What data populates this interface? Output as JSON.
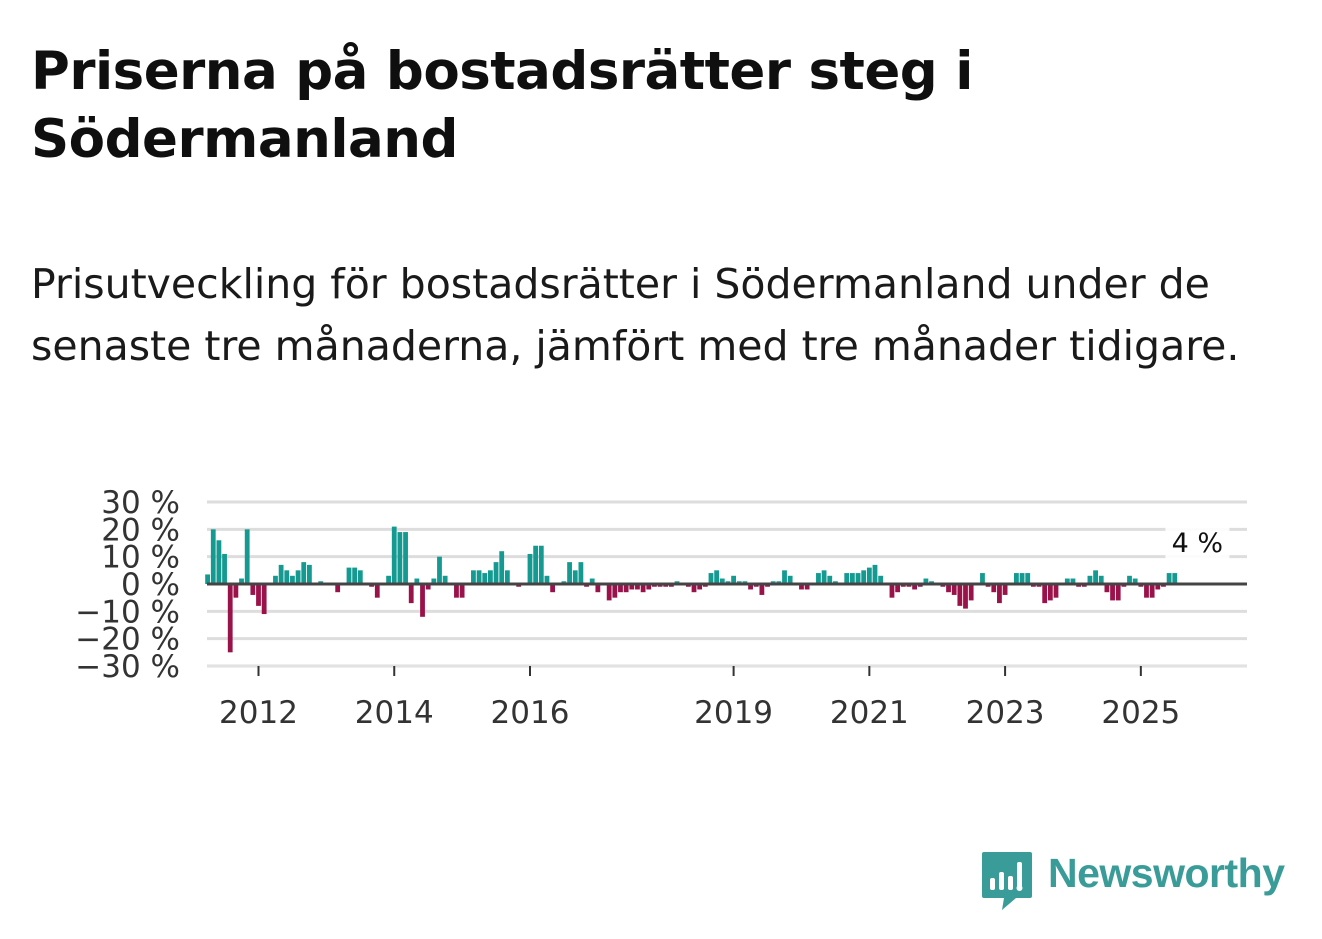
{
  "header": {
    "title": "Priserna på bostadsrätter steg i Södermanland",
    "subtitle": "Prisutveckling för bostadsrätter i Södermanland under de senaste tre månaderna, jämfört med tre månader tidigare."
  },
  "brand": {
    "name": "Newsworthy",
    "color": "#3a9c98",
    "icon": "newsworthy-bar-chart-icon"
  },
  "colors": {
    "positive": "#159a92",
    "negative": "#99124a",
    "zero_line": "#444444",
    "grid": "#dddddd"
  },
  "chart_data": {
    "type": "bar",
    "title": "",
    "xlabel": "",
    "ylabel": "",
    "ylim": [
      -30,
      30
    ],
    "y_ticks": [
      30,
      20,
      10,
      0,
      -10,
      -20,
      -30
    ],
    "y_tick_labels": [
      "30 %",
      "20 %",
      "10 %",
      "0 %",
      "−10 %",
      "−20 %",
      "−30 %"
    ],
    "x_ticks": [
      2012,
      2014,
      2016,
      2019,
      2021,
      2023,
      2025
    ],
    "x_tick_labels": [
      "2012",
      "2014",
      "2016",
      "2019",
      "2021",
      "2023",
      "2025"
    ],
    "start": {
      "year": 2011,
      "month": 4
    },
    "annotation": {
      "text": "4 %",
      "index": 175
    },
    "values": [
      3.5,
      20,
      16,
      11,
      -25,
      -5,
      2,
      20,
      -4,
      -8,
      -11,
      0,
      3,
      7,
      5,
      3,
      5,
      8,
      7,
      0,
      1,
      0.5,
      0,
      -3,
      0,
      6,
      6,
      5,
      0,
      -1,
      -5,
      0,
      3,
      21,
      19,
      19,
      -7,
      2,
      -12,
      -2,
      2,
      10,
      3,
      0,
      -5,
      -5,
      0,
      5,
      5,
      4,
      5,
      8,
      12,
      5,
      0,
      -1,
      0,
      11,
      14,
      14,
      3,
      -3,
      0,
      1,
      8,
      5,
      8,
      -1,
      2,
      -3,
      0,
      -6,
      -5,
      -3,
      -3,
      -2,
      -2,
      -3,
      -2,
      -1,
      -1,
      -1,
      -1,
      1,
      0,
      -1,
      -3,
      -2,
      -1,
      4,
      5,
      2,
      1,
      3,
      1,
      1,
      -2,
      -1,
      -4,
      -1,
      1,
      1,
      5,
      3,
      0,
      -2,
      -2,
      0,
      4,
      5,
      3,
      1,
      0,
      4,
      4,
      4,
      5,
      6,
      7,
      3,
      0,
      -5,
      -3,
      -1,
      -1,
      -2,
      -1,
      2,
      1,
      0,
      -1,
      -3,
      -4,
      -8,
      -9,
      -6,
      0,
      4,
      -1,
      -3,
      -7,
      -4,
      0,
      4,
      4,
      4,
      -1,
      -1,
      -7,
      -6,
      -5,
      0,
      2,
      2,
      -1,
      -1,
      3,
      5,
      3,
      -3,
      -6,
      -6,
      -1,
      3,
      2,
      -1,
      -5,
      -5,
      -2,
      -1,
      4,
      4
    ]
  }
}
